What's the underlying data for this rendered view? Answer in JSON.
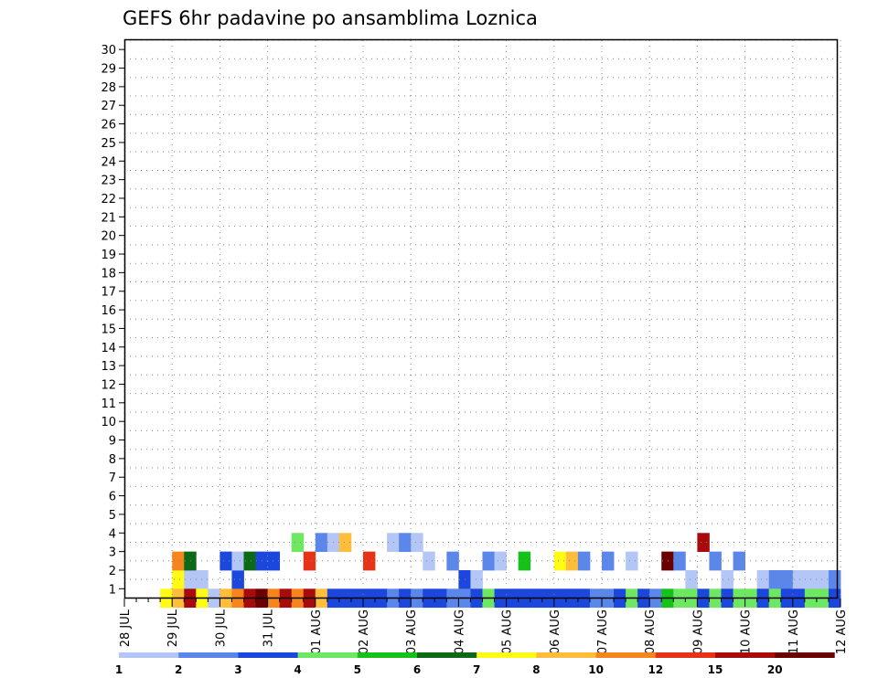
{
  "chart_data": {
    "type": "heatmap",
    "title": "GEFS 6hr padavine po ansamblima Loznica",
    "xlabel": "",
    "ylabel": "",
    "x_ticks": [
      "28 JUL",
      "29 JUL",
      "30 JUL",
      "31 JUL",
      "01 AUG",
      "02 AUG",
      "03 AUG",
      "04 AUG",
      "05 AUG",
      "06 AUG",
      "07 AUG",
      "08 AUG",
      "09 AUG",
      "10 AUG",
      "11 AUG",
      "12 AUG"
    ],
    "y_ticks": [
      "1",
      "2",
      "3",
      "4",
      "5",
      "6",
      "7",
      "8",
      "9",
      "10",
      "11",
      "12",
      "13",
      "14",
      "15",
      "16",
      "17",
      "18",
      "19",
      "20",
      "21",
      "22",
      "23",
      "24",
      "25",
      "26",
      "27",
      "28",
      "29",
      "30"
    ],
    "x_range_steps": [
      0,
      60
    ],
    "y_range_members": [
      0,
      30
    ],
    "grid": true,
    "colorbar": {
      "labels": [
        "1",
        "2",
        "3",
        "4",
        "5",
        "6",
        "7",
        "8",
        "10",
        "12",
        "15",
        "20"
      ],
      "colors": [
        "#b3c6f5",
        "#5b86ea",
        "#1c47dc",
        "#6ee863",
        "#16c21a",
        "#0c6a17",
        "#fffb14",
        "#ffbd3c",
        "#f6851e",
        "#e63317",
        "#a80b0b",
        "#6b0000"
      ]
    },
    "cells": [
      [
        4,
        1,
        6
      ],
      [
        4,
        2,
        8
      ],
      [
        5,
        1,
        0
      ],
      [
        5,
        2,
        5
      ],
      [
        6,
        1,
        0
      ],
      [
        8,
        2,
        2
      ],
      [
        9,
        1,
        2
      ],
      [
        9,
        2,
        0
      ],
      [
        10,
        2,
        5
      ],
      [
        11,
        2,
        2
      ],
      [
        12,
        2,
        2
      ],
      [
        14,
        3,
        3
      ],
      [
        15,
        2,
        9
      ],
      [
        16,
        3,
        1
      ],
      [
        17,
        3,
        0
      ],
      [
        18,
        3,
        7
      ],
      [
        20,
        2,
        9
      ],
      [
        22,
        3,
        0
      ],
      [
        23,
        3,
        1
      ],
      [
        24,
        3,
        0
      ],
      [
        25,
        2,
        0
      ],
      [
        27,
        2,
        1
      ],
      [
        28,
        1,
        2
      ],
      [
        29,
        1,
        0
      ],
      [
        30,
        2,
        1
      ],
      [
        31,
        2,
        0
      ],
      [
        33,
        2,
        4
      ],
      [
        36,
        2,
        6
      ],
      [
        37,
        2,
        7
      ],
      [
        38,
        2,
        1
      ],
      [
        40,
        2,
        1
      ],
      [
        42,
        2,
        0
      ],
      [
        45,
        2,
        11
      ],
      [
        46,
        2,
        1
      ],
      [
        47,
        1,
        0
      ],
      [
        48,
        3,
        10
      ],
      [
        49,
        2,
        1
      ],
      [
        50,
        1,
        0
      ],
      [
        51,
        2,
        1
      ],
      [
        53,
        1,
        0
      ],
      [
        54,
        1,
        1
      ],
      [
        55,
        1,
        1
      ],
      [
        56,
        1,
        0
      ],
      [
        57,
        1,
        0
      ],
      [
        58,
        1,
        0
      ],
      [
        59,
        1,
        1
      ],
      [
        3,
        0,
        6
      ],
      [
        4,
        0,
        7
      ],
      [
        5,
        0,
        10
      ],
      [
        6,
        0,
        6
      ],
      [
        7,
        0,
        0
      ],
      [
        8,
        0,
        7
      ],
      [
        9,
        0,
        8
      ],
      [
        10,
        0,
        10
      ],
      [
        11,
        0,
        11
      ],
      [
        12,
        0,
        8
      ],
      [
        13,
        0,
        10
      ],
      [
        14,
        0,
        8
      ],
      [
        15,
        0,
        10
      ],
      [
        16,
        0,
        7
      ],
      [
        17,
        0,
        2
      ],
      [
        18,
        0,
        2
      ],
      [
        19,
        0,
        2
      ],
      [
        20,
        0,
        2
      ],
      [
        21,
        0,
        2
      ],
      [
        22,
        0,
        1
      ],
      [
        23,
        0,
        2
      ],
      [
        24,
        0,
        1
      ],
      [
        25,
        0,
        2
      ],
      [
        26,
        0,
        2
      ],
      [
        27,
        0,
        1
      ],
      [
        28,
        0,
        1
      ],
      [
        29,
        0,
        2
      ],
      [
        30,
        0,
        3
      ],
      [
        31,
        0,
        2
      ],
      [
        32,
        0,
        2
      ],
      [
        33,
        0,
        2
      ],
      [
        34,
        0,
        2
      ],
      [
        35,
        0,
        2
      ],
      [
        36,
        0,
        2
      ],
      [
        37,
        0,
        2
      ],
      [
        38,
        0,
        2
      ],
      [
        39,
        0,
        1
      ],
      [
        40,
        0,
        1
      ],
      [
        41,
        0,
        2
      ],
      [
        42,
        0,
        3
      ],
      [
        43,
        0,
        2
      ],
      [
        44,
        0,
        1
      ],
      [
        45,
        0,
        4
      ],
      [
        46,
        0,
        3
      ],
      [
        47,
        0,
        3
      ],
      [
        48,
        0,
        2
      ],
      [
        49,
        0,
        3
      ],
      [
        50,
        0,
        2
      ],
      [
        51,
        0,
        3
      ],
      [
        52,
        0,
        3
      ],
      [
        53,
        0,
        2
      ],
      [
        54,
        0,
        3
      ],
      [
        55,
        0,
        2
      ],
      [
        56,
        0,
        2
      ],
      [
        57,
        0,
        3
      ],
      [
        58,
        0,
        3
      ],
      [
        59,
        0,
        2
      ]
    ]
  }
}
